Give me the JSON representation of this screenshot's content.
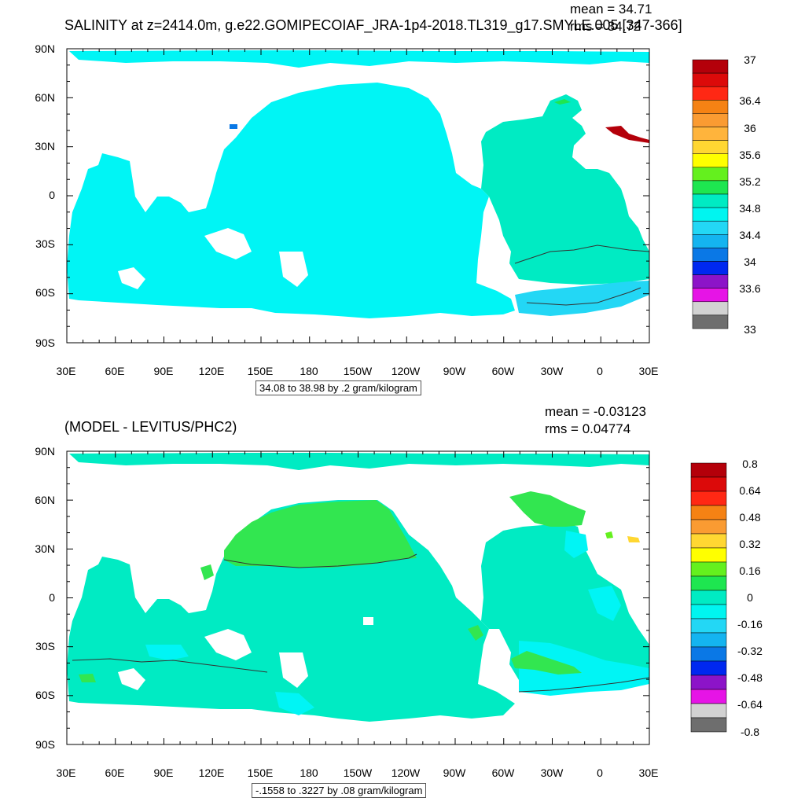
{
  "panels": [
    {
      "title": "SALINITY at z=2414.0m, g.e22.GOMIPECOIAF_JRA-1p4-2018.TL319_g17.SMYLE.005 [347-366]",
      "mean": "mean = 34.71",
      "rms": "rms = 34.72",
      "info": "34.08 to 38.98 by .2 gram/kilogram",
      "colorbar_labels": [
        "37",
        "36.4",
        "36",
        "35.6",
        "35.2",
        "34.8",
        "34.4",
        "34",
        "33.6",
        "33"
      ],
      "colors": [
        "#b4000a",
        "#dc0a0a",
        "#ff2814",
        "#f58214",
        "#fa9b32",
        "#ffb43c",
        "#ffd732",
        "#ffff00",
        "#64f01e",
        "#1ee650",
        "#00ebc3",
        "#00f5f0",
        "#23d7f5",
        "#14b4f0",
        "#0a78e6",
        "#0028f0",
        "#8c14c8",
        "#e614e6",
        "#d2d2d2",
        "#6e6e6e"
      ],
      "ocean_color": "#00f5f5",
      "atlantic_color": "#00ebc3"
    },
    {
      "title": "(MODEL - LEVITUS/PHC2)",
      "mean": "mean = -0.03123",
      "rms": "rms = 0.04774",
      "info": "-.1558 to .3227 by .08 gram/kilogram",
      "colorbar_labels": [
        "0.8",
        "0.64",
        "0.48",
        "0.32",
        "0.16",
        "0",
        "-0.16",
        "-0.32",
        "-0.48",
        "-0.64",
        "-0.8"
      ],
      "colors": [
        "#b4000a",
        "#dc0a0a",
        "#ff2814",
        "#f58214",
        "#fa9b32",
        "#ffd732",
        "#ffff00",
        "#64f01e",
        "#1ee650",
        "#00ebc3",
        "#00f5f0",
        "#23d7f5",
        "#14b4f0",
        "#0a78e6",
        "#0028f0",
        "#8c14c8",
        "#e614e6",
        "#d2d2d2",
        "#6e6e6e"
      ],
      "ocean_color": "#00ebc3",
      "north_pacific_color": "#32e650"
    }
  ],
  "axes": {
    "lat_labels": [
      "90N",
      "60N",
      "30N",
      "0",
      "30S",
      "60S",
      "90S"
    ],
    "lon_labels": [
      "30E",
      "60E",
      "90E",
      "120E",
      "150E",
      "180",
      "150W",
      "120W",
      "90W",
      "60W",
      "30W",
      "0",
      "30E"
    ]
  }
}
